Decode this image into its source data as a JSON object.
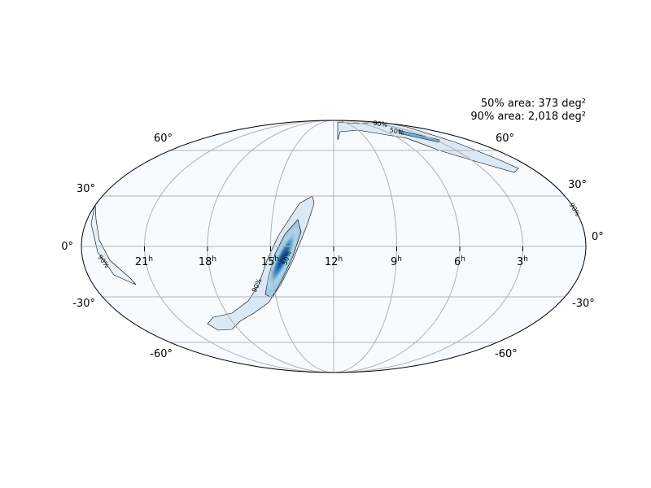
{
  "annotations": {
    "area_50": "50% area: 373 deg²",
    "area_90": "90% area: 2,018 deg²"
  },
  "ra_labels": [
    {
      "hours": "21",
      "suffix": "h"
    },
    {
      "hours": "18",
      "suffix": "h"
    },
    {
      "hours": "15",
      "suffix": "h"
    },
    {
      "hours": "12",
      "suffix": "h"
    },
    {
      "hours": "9",
      "suffix": "h"
    },
    {
      "hours": "6",
      "suffix": "h"
    },
    {
      "hours": "3",
      "suffix": "h"
    }
  ],
  "dec_labels_left": [
    "60°",
    "30°",
    "0°",
    "-30°",
    "-60°"
  ],
  "dec_labels_right": [
    "60°",
    "30°",
    "0°",
    "-30°",
    "-60°"
  ],
  "contour_labels": [
    "90%",
    "50%",
    "90%",
    "50%",
    "90%",
    "90%"
  ]
}
